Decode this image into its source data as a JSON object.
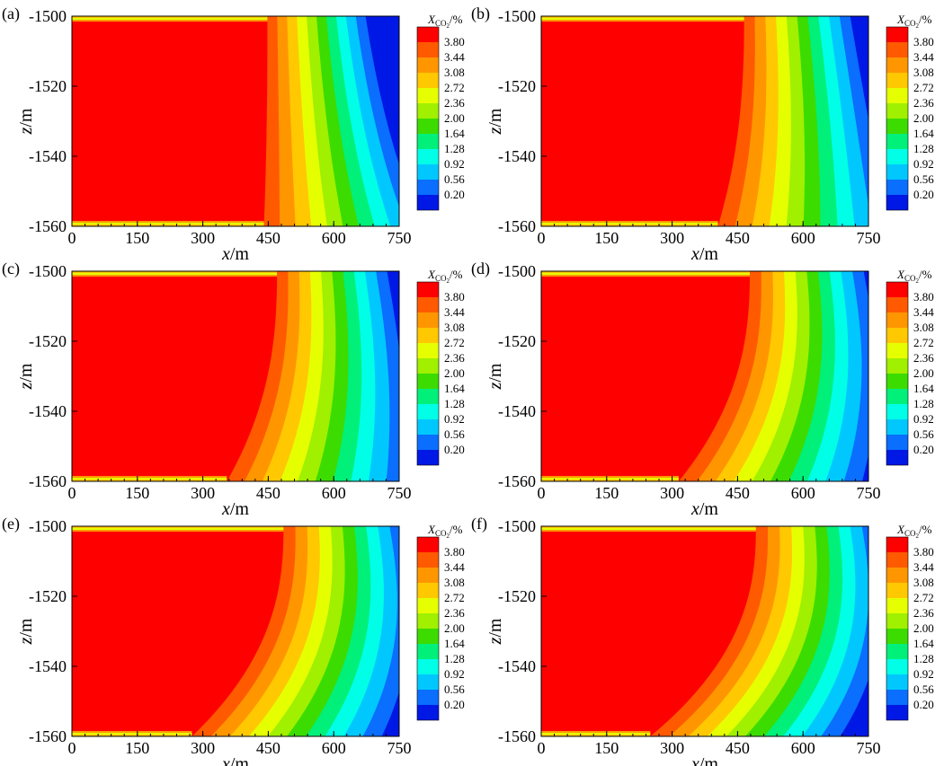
{
  "chart_data": {
    "type": "heatmap",
    "variable_symbol": "X",
    "variable_subscript": "CO",
    "variable_subscript_2": "2",
    "variable_unit": "/%",
    "xlabel_var": "x",
    "xlabel_unit": "/m",
    "ylabel_var": "z",
    "ylabel_unit": "/m",
    "xlim": [
      0,
      750
    ],
    "ylim": [
      -1560,
      -1500
    ],
    "xticks": [
      "0",
      "150",
      "300",
      "450",
      "600",
      "750"
    ],
    "xtick_values": [
      0,
      150,
      300,
      450,
      600,
      750
    ],
    "yticks": [
      "-1500",
      "-1520",
      "-1540",
      "-1560"
    ],
    "ytick_values": [
      -1500,
      -1520,
      -1540,
      -1560
    ],
    "levels": [
      0.2,
      0.56,
      0.92,
      1.28,
      1.64,
      2.0,
      2.36,
      2.72,
      3.08,
      3.44,
      3.8
    ],
    "level_labels": [
      "3.80",
      "3.44",
      "3.08",
      "2.72",
      "2.36",
      "2.00",
      "1.64",
      "1.28",
      "0.92",
      "0.56",
      "0.20"
    ],
    "level_colors": [
      "#ff0000",
      "#ff5a00",
      "#ff9600",
      "#ffc800",
      "#e6ff00",
      "#a0f000",
      "#3cdc00",
      "#00f07a",
      "#00ffe6",
      "#00c8ff",
      "#0a6eff",
      "#0018e6"
    ],
    "panels": [
      {
        "label": "(a)",
        "front_top": 448,
        "front_bottom": 440,
        "band_width": 25
      },
      {
        "label": "(b)",
        "front_top": 465,
        "front_bottom": 405,
        "band_width": 27
      },
      {
        "label": "(c)",
        "front_top": 470,
        "front_bottom": 355,
        "band_width": 28
      },
      {
        "label": "(d)",
        "front_top": 478,
        "front_bottom": 315,
        "band_width": 29
      },
      {
        "label": "(e)",
        "front_top": 485,
        "front_bottom": 275,
        "band_width": 30
      },
      {
        "label": "(f)",
        "front_top": 492,
        "front_bottom": 250,
        "band_width": 30
      }
    ]
  }
}
